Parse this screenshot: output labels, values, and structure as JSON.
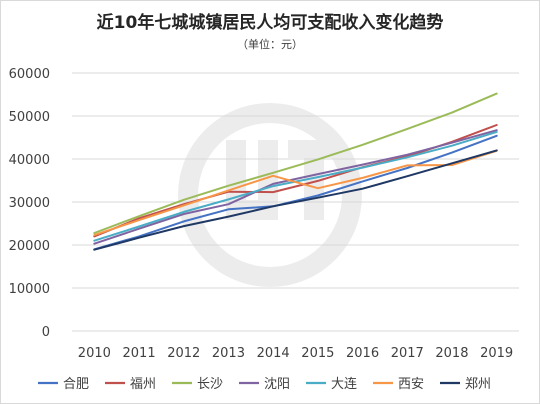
{
  "chart_data": {
    "type": "line",
    "title": "近10年七城城镇居民人均可支配收入变化趋势",
    "subtitle": "（单位：元）",
    "xlabel": "",
    "ylabel": "",
    "categories": [
      "2010",
      "2011",
      "2012",
      "2013",
      "2014",
      "2015",
      "2016",
      "2017",
      "2018",
      "2019"
    ],
    "ylim": [
      0,
      60000
    ],
    "yticks": [
      0,
      10000,
      20000,
      30000,
      40000,
      50000,
      60000
    ],
    "grid": true,
    "legend_position": "bottom",
    "series": [
      {
        "name": "合肥",
        "color": "#4472c4",
        "values": [
          19000,
          22000,
          25500,
          28300,
          29000,
          31500,
          34800,
          37900,
          41500,
          45400
        ]
      },
      {
        "name": "福州",
        "color": "#c0504d",
        "values": [
          22000,
          26200,
          29500,
          32400,
          32300,
          34900,
          38100,
          40600,
          44000,
          47900
        ]
      },
      {
        "name": "长沙",
        "color": "#9bbb59",
        "values": [
          22800,
          26700,
          30500,
          33800,
          36800,
          39900,
          43300,
          47000,
          50800,
          55200
        ]
      },
      {
        "name": "沈阳",
        "color": "#8064a2",
        "values": [
          20300,
          23800,
          27200,
          29500,
          34200,
          36500,
          38700,
          41000,
          43800,
          46700
        ]
      },
      {
        "name": "大连",
        "color": "#4bacc6",
        "values": [
          21000,
          24300,
          27700,
          30600,
          33700,
          35800,
          38000,
          40400,
          43100,
          46300
        ]
      },
      {
        "name": "西安",
        "color": "#f79646",
        "values": [
          22300,
          25800,
          29200,
          32700,
          36100,
          33200,
          35600,
          38500,
          38600,
          41900
        ]
      },
      {
        "name": "郑州",
        "color": "#1f3864",
        "values": [
          18900,
          21700,
          24400,
          26600,
          29000,
          31000,
          33100,
          36000,
          39000,
          42000
        ]
      }
    ]
  }
}
